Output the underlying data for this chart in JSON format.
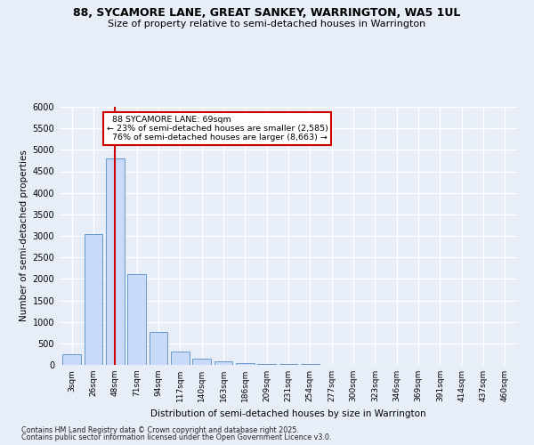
{
  "title1": "88, SYCAMORE LANE, GREAT SANKEY, WARRINGTON, WA5 1UL",
  "title2": "Size of property relative to semi-detached houses in Warrington",
  "xlabel": "Distribution of semi-detached houses by size in Warrington",
  "ylabel": "Number of semi-detached properties",
  "footer1": "Contains HM Land Registry data © Crown copyright and database right 2025.",
  "footer2": "Contains public sector information licensed under the Open Government Licence v3.0.",
  "categories": [
    "3sqm",
    "26sqm",
    "48sqm",
    "71sqm",
    "94sqm",
    "117sqm",
    "140sqm",
    "163sqm",
    "186sqm",
    "209sqm",
    "231sqm",
    "254sqm",
    "277sqm",
    "300sqm",
    "323sqm",
    "346sqm",
    "369sqm",
    "391sqm",
    "414sqm",
    "437sqm",
    "460sqm"
  ],
  "values": [
    240,
    3050,
    4800,
    2120,
    775,
    305,
    150,
    75,
    50,
    30,
    25,
    20,
    0,
    0,
    0,
    0,
    0,
    0,
    0,
    0,
    0
  ],
  "bar_color": "#c9daf8",
  "bar_edge_color": "#6699cc",
  "property_label": "88 SYCAMORE LANE: 69sqm",
  "pct_smaller": 23,
  "pct_larger": 76,
  "count_smaller": 2585,
  "count_larger": 8663,
  "vline_bin": 2,
  "ylim_max": 6000,
  "ytick_step": 500,
  "bg_color": "#e8eef7",
  "grid_color": "#ffffff",
  "ann_box_face": "#ffffff",
  "ann_box_edge": "#cc0000",
  "vline_color": "#cc0000"
}
